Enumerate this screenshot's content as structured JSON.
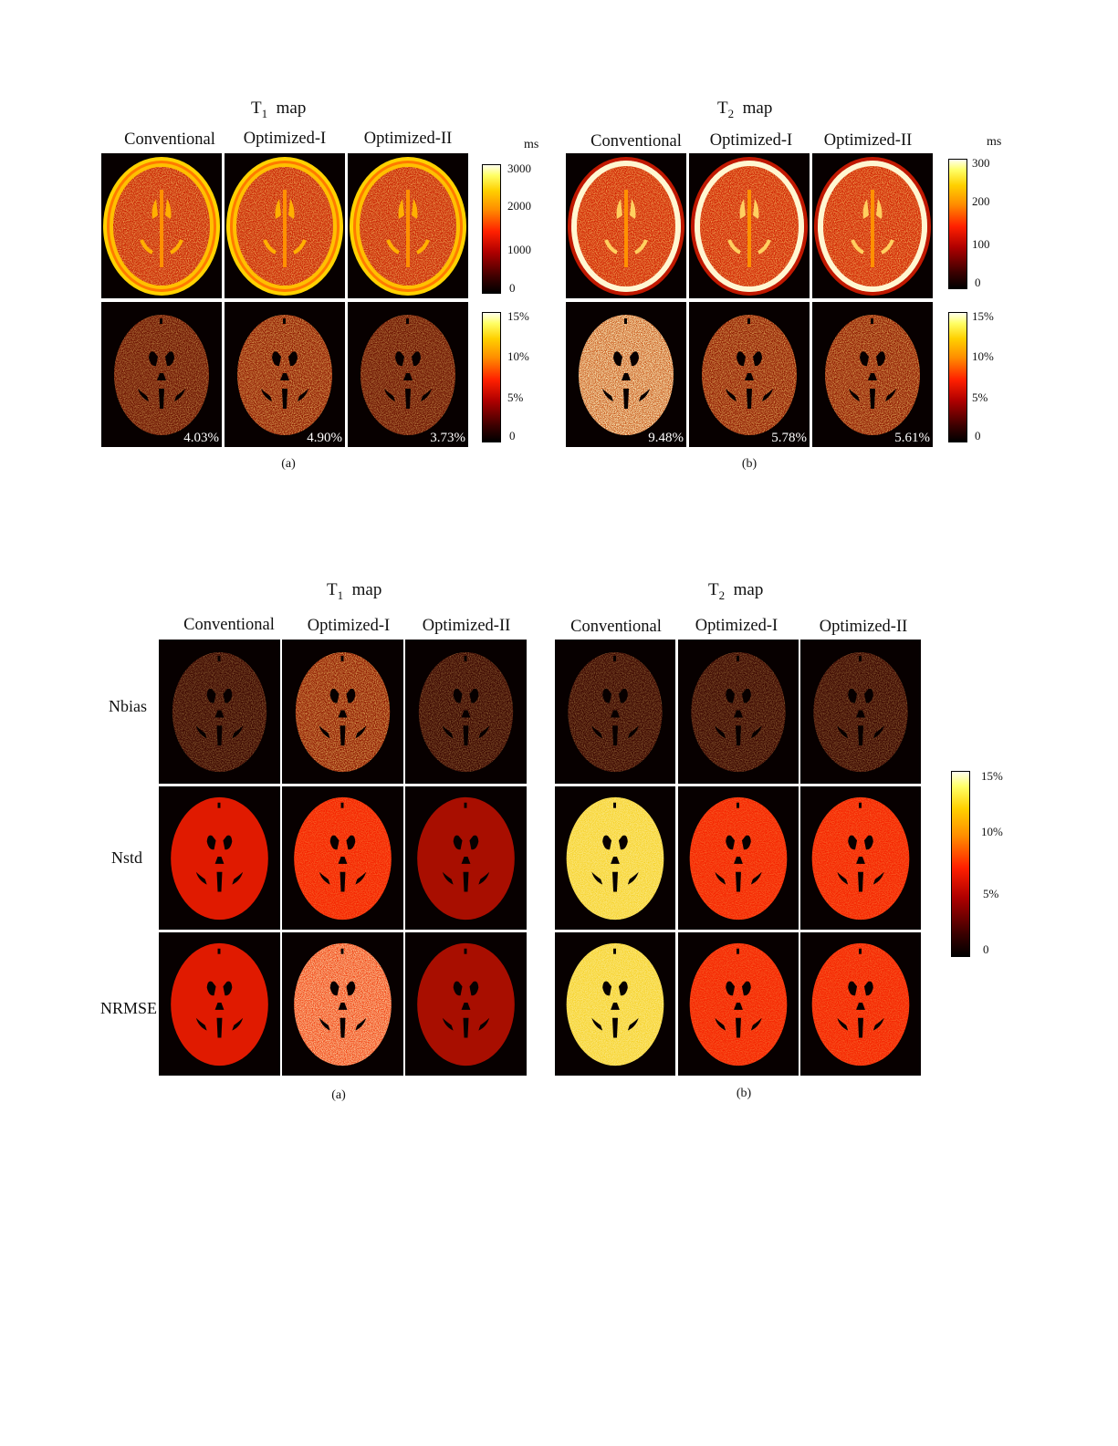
{
  "figure1": {
    "t1_title": "T",
    "t1_sub": "1",
    "t2_title": "T",
    "t2_sub": "2",
    "map_word": "map",
    "columns": [
      "Conventional",
      "Optimized-I",
      "Optimized-II"
    ],
    "t1_error_values": [
      "4.03%",
      "4.90%",
      "3.73%"
    ],
    "t2_error_values": [
      "9.48%",
      "5.78%",
      "5.61%"
    ],
    "unit_label": "ms",
    "t1_colorbar_ticks": [
      "3000",
      "2000",
      "1000",
      "0"
    ],
    "t2_colorbar_ticks": [
      "300",
      "200",
      "100",
      "0"
    ],
    "error_colorbar_ticks": [
      "15%",
      "10%",
      "5%",
      "0"
    ],
    "sub_a": "(a)",
    "sub_b": "(b)"
  },
  "figure2": {
    "t1_title": "T",
    "t1_sub": "1",
    "t2_title": "T",
    "t2_sub": "2",
    "map_word": "map",
    "columns": [
      "Conventional",
      "Optimized-I",
      "Optimized-II"
    ],
    "rows": [
      "Nbias",
      "Nstd",
      "NRMSE"
    ],
    "colorbar_ticks": [
      "15%",
      "10%",
      "5%",
      "0"
    ],
    "sub_a": "(a)",
    "sub_b": "(b)"
  },
  "colors": {
    "background": "#ffffff",
    "tile_background": "#070000",
    "heat_low": "#000000",
    "heat_mid": "#ff2000",
    "heat_high": "#ffffee"
  }
}
